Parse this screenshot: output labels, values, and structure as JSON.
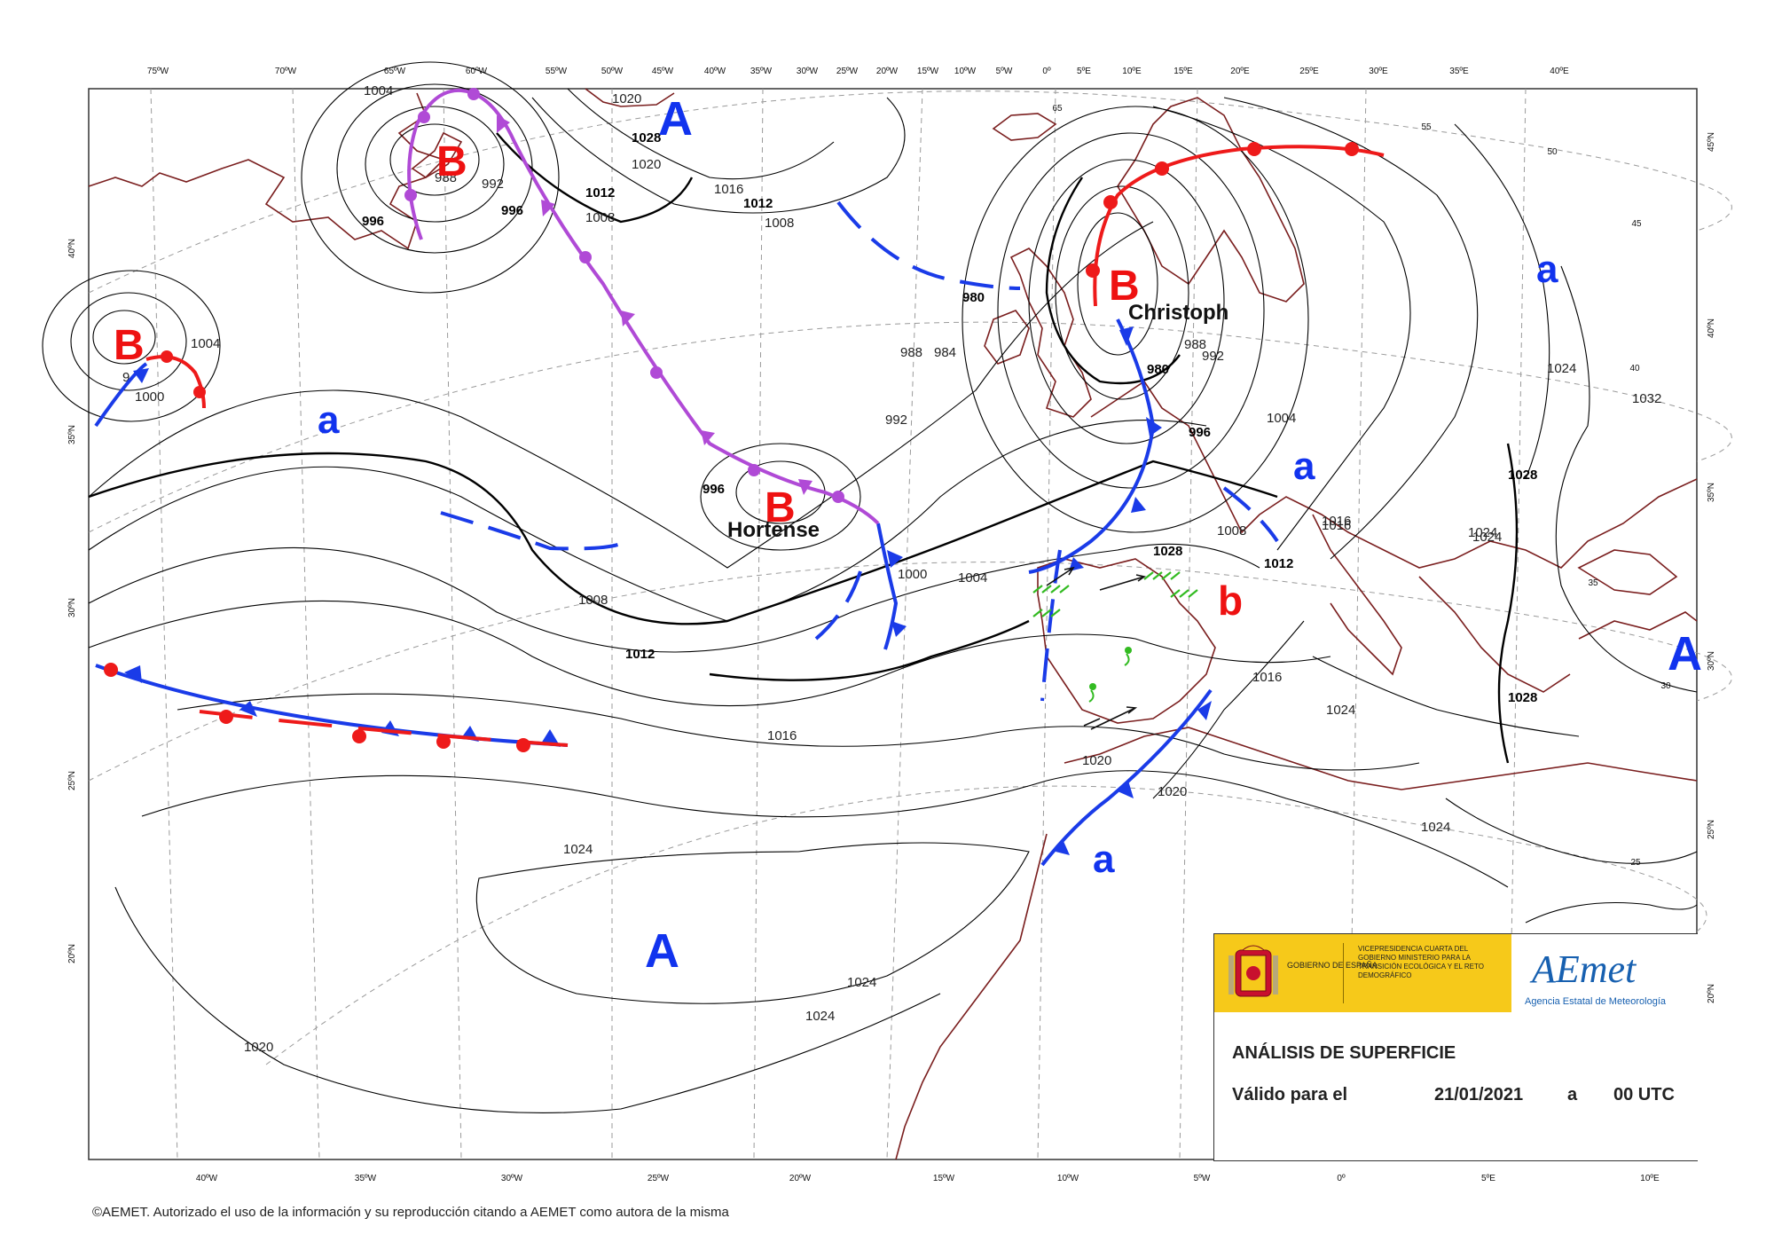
{
  "map": {
    "top_lon_labels": [
      "75ºW",
      "70ºW",
      "65ºW",
      "60ºW",
      "55ºW",
      "50ºW",
      "45ºW",
      "40ºW",
      "35ºW",
      "30ºW",
      "25ºW",
      "20ºW",
      "15ºW",
      "10ºW",
      "5ºW",
      "0º",
      "5ºE",
      "10ºE",
      "15ºE",
      "20ºE",
      "25ºE",
      "30ºE",
      "35ºE",
      "40ºE"
    ],
    "bottom_lon_labels": [
      "40ºW",
      "35ºW",
      "30ºW",
      "25ºW",
      "20ºW",
      "15ºW",
      "10ºW",
      "5ºW",
      "0º",
      "5ºE",
      "10ºE"
    ],
    "left_lat_labels": [
      "40ºN",
      "35ºN",
      "30ºN",
      "25ºN",
      "20ºN"
    ],
    "right_lat_labels": [
      "45ºN",
      "40ºN",
      "35ºN",
      "30ºN",
      "25ºN",
      "20ºN"
    ],
    "inner_lat_labels": [
      "65",
      "55",
      "50",
      "45",
      "40",
      "35",
      "30",
      "25"
    ],
    "isobar_labels": [
      "1004",
      "1020",
      "1028",
      "1020",
      "1016",
      "1012",
      "1012",
      "1008",
      "1008",
      "1004",
      "1000",
      "996",
      "992",
      "996",
      "980",
      "988",
      "984",
      "992",
      "996",
      "1000",
      "1004",
      "1008",
      "1012",
      "1016",
      "1020",
      "1024",
      "1024",
      "1024",
      "1024",
      "1016",
      "1016",
      "1024",
      "1020",
      "1020",
      "1024",
      "1028",
      "1028",
      "1024",
      "1032",
      "1028",
      "980",
      "988",
      "992",
      "996",
      "1004",
      "1008",
      "1012",
      "1016",
      "1024",
      "988",
      "9"
    ],
    "pressure_centers": [
      {
        "type": "B",
        "name": ""
      },
      {
        "type": "B",
        "name": ""
      },
      {
        "type": "B",
        "name": "Hortense"
      },
      {
        "type": "B",
        "name": "Christoph"
      },
      {
        "type": "b",
        "name": ""
      },
      {
        "type": "A",
        "name": ""
      },
      {
        "type": "A",
        "name": ""
      },
      {
        "type": "A",
        "name": ""
      },
      {
        "type": "a",
        "name": ""
      },
      {
        "type": "a",
        "name": ""
      },
      {
        "type": "a",
        "name": ""
      },
      {
        "type": "a",
        "name": ""
      }
    ],
    "colors": {
      "cold_front": "#1a3be8",
      "warm_front": "#ee1a1a",
      "occluded_front": "#b04ad6",
      "coastline": "#7a1e1e",
      "isobar": "#000000",
      "grid": "#9a9a9a",
      "precip": "#33bb22"
    }
  },
  "info_box": {
    "gov_name": "GOBIERNO DE ESPAÑA",
    "ministry_lines": "VICEPRESIDENCIA CUARTA DEL GOBIERNO  MINISTERIO PARA LA TRANSICIÓN ECOLÓGICA Y EL RETO DEMOGRÁFICO",
    "aemet_logo_text": "AEmet",
    "aemet_sub": "Agencia Estatal de Meteorología",
    "title": "ANÁLISIS DE SUPERFICIE",
    "valid_label": "Válido para el",
    "valid_date": "21/01/2021",
    "valid_at": "a",
    "valid_time": "00 UTC"
  },
  "footer": {
    "copyright": "©AEMET. Autorizado el uso de la información y su reproducción citando a AEMET como autora de la misma"
  }
}
